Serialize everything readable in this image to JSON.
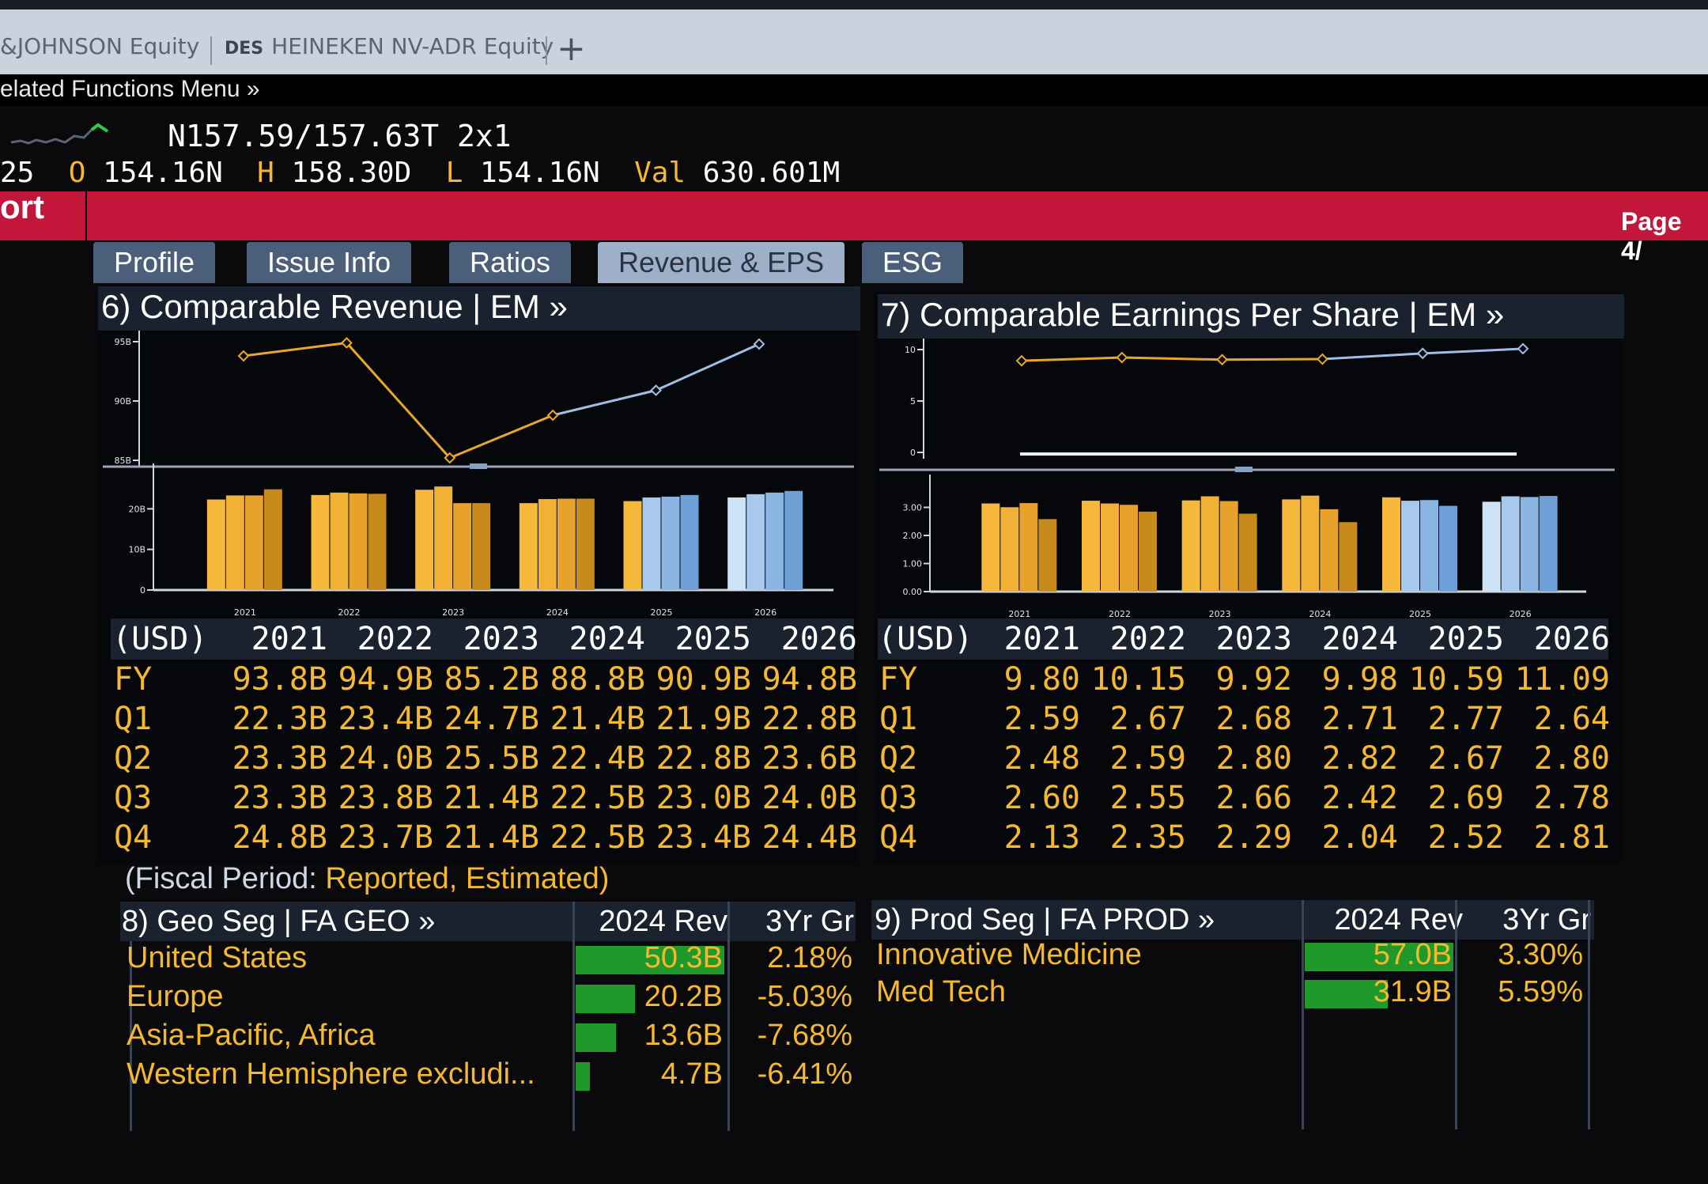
{
  "window": {
    "tabs": [
      {
        "label": "&JOHNSON Equity"
      },
      {
        "prefix": "DES",
        "label": "HEINEKEN NV-ADR Equity"
      }
    ],
    "add_tab": "+",
    "related_menu": "elated Functions Menu »"
  },
  "quote": {
    "line1": "N157.59/157.63T 2x1",
    "open_prefix": "25",
    "o_label": "O",
    "o_value": "154.16N",
    "h_label": "H",
    "h_value": "158.30D",
    "l_label": "L",
    "l_value": "154.16N",
    "val_label": "Val",
    "val_value": "630.601M"
  },
  "title_bar": {
    "title": "ort",
    "page": "Page 4/"
  },
  "section_tabs": [
    "Profile",
    "Issue Info",
    "Ratios",
    "Revenue & EPS",
    "ESG"
  ],
  "revenue": {
    "header": "6) Comparable Revenue | EM »",
    "columns": [
      "(USD)",
      "2021",
      "2022",
      "2023",
      "2024",
      "2025",
      "2026"
    ],
    "rows": [
      {
        "label": "FY",
        "values": [
          "93.8B",
          "94.9B",
          "85.2B",
          "88.8B",
          "90.9B",
          "94.8B"
        ]
      },
      {
        "label": "Q1",
        "values": [
          "22.3B",
          "23.4B",
          "24.7B",
          "21.4B",
          "21.9B",
          "22.8B"
        ]
      },
      {
        "label": "Q2",
        "values": [
          "23.3B",
          "24.0B",
          "25.5B",
          "22.4B",
          "22.8B",
          "23.6B"
        ]
      },
      {
        "label": "Q3",
        "values": [
          "23.3B",
          "23.8B",
          "21.4B",
          "22.5B",
          "23.0B",
          "24.0B"
        ]
      },
      {
        "label": "Q4",
        "values": [
          "24.8B",
          "23.7B",
          "21.4B",
          "22.5B",
          "23.4B",
          "24.4B"
        ]
      }
    ]
  },
  "eps": {
    "header": "7) Comparable Earnings Per Share | EM »",
    "columns": [
      "(USD)",
      "2021",
      "2022",
      "2023",
      "2024",
      "2025",
      "2026"
    ],
    "rows": [
      {
        "label": "FY",
        "values": [
          "9.80",
          "10.15",
          "9.92",
          "9.98",
          "10.59",
          "11.09"
        ]
      },
      {
        "label": "Q1",
        "values": [
          "2.59",
          "2.67",
          "2.68",
          "2.71",
          "2.77",
          "2.64"
        ]
      },
      {
        "label": "Q2",
        "values": [
          "2.48",
          "2.59",
          "2.80",
          "2.82",
          "2.67",
          "2.80"
        ]
      },
      {
        "label": "Q3",
        "values": [
          "2.60",
          "2.55",
          "2.66",
          "2.42",
          "2.69",
          "2.78"
        ]
      },
      {
        "label": "Q4",
        "values": [
          "2.13",
          "2.35",
          "2.29",
          "2.04",
          "2.52",
          "2.81"
        ]
      }
    ]
  },
  "fiscal_note": {
    "prefix": "(Fiscal Period:",
    "text": "Reported, Estimated)"
  },
  "geo_seg": {
    "header": "8) Geo Seg | FA GEO »",
    "col_rev": "2024 Rev",
    "col_gr": "3Yr Gr",
    "rows": [
      {
        "name": "United States",
        "rev": "50.3B",
        "gr": "2.18%",
        "rev_value": 50.3
      },
      {
        "name": "Europe",
        "rev": "20.2B",
        "gr": "-5.03%",
        "rev_value": 20.2
      },
      {
        "name": "Asia-Pacific, Africa",
        "rev": "13.6B",
        "gr": "-7.68%",
        "rev_value": 13.6
      },
      {
        "name": "Western Hemisphere excludi...",
        "rev": "4.7B",
        "gr": "-6.41%",
        "rev_value": 4.7
      }
    ]
  },
  "prod_seg": {
    "header": "9) Prod Seg | FA PROD »",
    "col_rev": "2024 Rev",
    "col_gr": "3Yr Gr",
    "rows": [
      {
        "name": "Innovative Medicine",
        "rev": "57.0B",
        "gr": "3.30%",
        "rev_value": 57.0
      },
      {
        "name": "Med Tech",
        "rev": "31.9B",
        "gr": "5.59%",
        "rev_value": 31.9
      }
    ]
  },
  "chart_data": [
    {
      "type": "line",
      "x": [
        "2021",
        "2022",
        "2023",
        "2024",
        "2025",
        "2026"
      ],
      "series": [
        {
          "values": [
            93.8,
            94.9,
            85.2,
            88.8,
            90.9,
            94.8
          ]
        }
      ],
      "estimated_from_index": 3,
      "y_ticks": [
        "85B",
        "90B",
        "95B"
      ],
      "ylim": [
        85,
        95
      ],
      "colors": {
        "reported": "#e8a62a",
        "estimated": "#9fbfe6"
      }
    },
    {
      "type": "bar",
      "categories": [
        "2021",
        "2022",
        "2023",
        "2024",
        "2025",
        "2026"
      ],
      "series": [
        {
          "values": [
            22.3,
            23.4,
            24.7,
            21.4,
            21.9,
            22.8
          ]
        },
        {
          "values": [
            23.3,
            24.0,
            25.5,
            22.4,
            22.8,
            23.6
          ]
        },
        {
          "values": [
            23.3,
            23.8,
            21.4,
            22.5,
            23.0,
            24.0
          ]
        },
        {
          "values": [
            24.8,
            23.7,
            21.4,
            22.5,
            23.4,
            24.4
          ]
        }
      ],
      "estimated_quarters": [
        [],
        [],
        [],
        [],
        [
          1,
          2,
          3
        ],
        [
          0,
          1,
          2,
          3
        ]
      ],
      "y_ticks": [
        "0",
        "10B",
        "20B"
      ],
      "ylim": [
        0,
        30
      ]
    },
    {
      "type": "line",
      "x": [
        "2021",
        "2022",
        "2023",
        "2024",
        "2025",
        "2026"
      ],
      "series": [
        {
          "values": [
            9.8,
            10.15,
            9.92,
            9.98,
            10.59,
            11.09
          ]
        }
      ],
      "estimated_from_index": 3,
      "y_ticks": [
        "0",
        "5",
        "10"
      ],
      "ylim": [
        0,
        11
      ]
    },
    {
      "type": "bar",
      "categories": [
        "2021",
        "2022",
        "2023",
        "2024",
        "2025",
        "2026"
      ],
      "series": [
        {
          "values": [
            2.59,
            2.67,
            2.68,
            2.71,
            2.77,
            2.64
          ]
        },
        {
          "values": [
            2.48,
            2.59,
            2.8,
            2.82,
            2.67,
            2.8
          ]
        },
        {
          "values": [
            2.6,
            2.55,
            2.66,
            2.42,
            2.69,
            2.78
          ]
        },
        {
          "values": [
            2.13,
            2.35,
            2.29,
            2.04,
            2.52,
            2.81
          ]
        }
      ],
      "estimated_quarters": [
        [],
        [],
        [],
        [],
        [
          1,
          2,
          3
        ],
        [
          0,
          1,
          2,
          3
        ]
      ],
      "y_ticks": [
        "0.00",
        "1.00",
        "2.00",
        "3.00"
      ],
      "ylim": [
        0,
        3.3
      ]
    }
  ]
}
